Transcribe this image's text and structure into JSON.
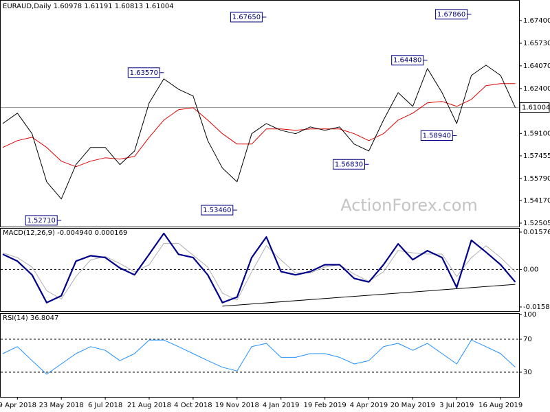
{
  "chart_data": [
    {
      "type": "line",
      "title": "EURAUD,Daily  1.60978 1.61191 1.60813 1.61004",
      "series": [
        {
          "color": "#000000",
          "width": 1,
          "values": [
            1.5983,
            1.6059,
            1.5908,
            1.5554,
            1.5428,
            1.5681,
            1.5807,
            1.5807,
            1.5681,
            1.5781,
            1.6135,
            1.6311,
            1.6235,
            1.6185,
            1.5857,
            1.5655,
            1.5554,
            1.5908,
            1.5983,
            1.5933,
            1.5908,
            1.5958,
            1.5933,
            1.5958,
            1.5832,
            1.5781,
            1.6008,
            1.621,
            1.6109,
            1.6387,
            1.621,
            1.5983,
            1.6336,
            1.6412,
            1.6336,
            1.61
          ]
        },
        {
          "color": "#e00000",
          "width": 1,
          "values": [
            1.5807,
            1.5857,
            1.5882,
            1.5807,
            1.5706,
            1.5665,
            1.5706,
            1.5731,
            1.5721,
            1.5741,
            1.5882,
            1.6008,
            1.6084,
            1.6099,
            1.6008,
            1.5908,
            1.5832,
            1.5832,
            1.5943,
            1.5943,
            1.5933,
            1.5943,
            1.5943,
            1.5943,
            1.5908,
            1.5857,
            1.5908,
            1.6008,
            1.6059,
            1.6135,
            1.6145,
            1.6109,
            1.616,
            1.6261,
            1.6276,
            1.6276
          ]
        }
      ],
      "ylim": [
        1.5225,
        1.6891
      ],
      "yticks": [
        {
          "value": 1.674,
          "label": "1.67400"
        },
        {
          "value": 1.6573,
          "label": "1.65730"
        },
        {
          "value": 1.6407,
          "label": "1.64070"
        },
        {
          "value": 1.624,
          "label": "1.62400"
        },
        {
          "value": 1.591,
          "label": "1.59100"
        },
        {
          "value": 1.57455,
          "label": "1.57455"
        },
        {
          "value": 1.5579,
          "label": "1.55790"
        },
        {
          "value": 1.5417,
          "label": "1.54170"
        },
        {
          "value": 1.52505,
          "label": "1.52505"
        }
      ],
      "grid": false,
      "last_price": {
        "value": 1.61004,
        "label": "1.61004"
      },
      "annotations": [
        {
          "label": "1.52710",
          "value": 1.5271,
          "index": 4
        },
        {
          "label": "1.63570",
          "value": 1.6357,
          "index": 11
        },
        {
          "label": "1.67650",
          "value": 1.6765,
          "index": 18
        },
        {
          "label": "1.53460",
          "value": 1.5346,
          "index": 16
        },
        {
          "label": "1.56830",
          "value": 1.5683,
          "index": 25
        },
        {
          "label": "1.64480",
          "value": 1.6448,
          "index": 29
        },
        {
          "label": "1.58940",
          "value": 1.5894,
          "index": 31
        },
        {
          "label": "1.67860",
          "value": 1.6786,
          "index": 32
        }
      ],
      "watermark": "ActionForex.com"
    },
    {
      "type": "line",
      "title": "MACD(12,26,9) -0.004940 0.000169",
      "series": [
        {
          "color": "#00008b",
          "width": 2.2,
          "values": [
            0.0064,
            0.0035,
            -0.0023,
            -0.014,
            -0.0111,
            0.0035,
            0.0058,
            0.005,
            0.0006,
            -0.0023,
            0.0064,
            0.0152,
            0.0064,
            0.005,
            -0.0023,
            -0.014,
            -0.0117,
            0.005,
            0.0137,
            -0.0009,
            -0.0023,
            -0.0009,
            0.002,
            0.002,
            -0.0038,
            -0.0053,
            0.002,
            0.0108,
            0.0041,
            0.0079,
            0.005,
            -0.0076,
            0.0123,
            0.0073,
            0.002,
            -0.0053
          ]
        },
        {
          "color": "#b0b0b0",
          "width": 1,
          "values": [
            0.007,
            0.005,
            0.001,
            -0.009,
            -0.0125,
            -0.003,
            0.004,
            0.0055,
            0.0025,
            -0.001,
            0.002,
            0.011,
            0.011,
            0.006,
            0.001,
            -0.01,
            -0.013,
            -0.001,
            0.01,
            0.004,
            -0.0015,
            -0.0015,
            0.001,
            0.002,
            -0.002,
            -0.005,
            -0.001,
            0.008,
            0.007,
            0.0065,
            0.0065,
            -0.003,
            0.005,
            0.01,
            0.005,
            -0.001
          ]
        }
      ],
      "ylim": [
        -0.015834,
        0.015762
      ],
      "yticks": [
        0.015762,
        {
          "value": 0,
          "label": "0.00"
        },
        -0.015834
      ],
      "grid": "dashed",
      "trendline": {
        "from_index": 15,
        "to_index": 35,
        "values": [
          -0.0155,
          -0.0063
        ]
      }
    },
    {
      "type": "line",
      "title": "RSI(14) 36.8047",
      "categories": [
        null,
        "9 Apr 2018",
        null,
        null,
        "23 May 2018",
        null,
        null,
        "6 Jul 2018",
        null,
        null,
        "21 Aug 2018",
        null,
        null,
        "4 Oct 2018",
        null,
        null,
        "19 Nov 2018",
        null,
        null,
        "4 Jan 2019",
        null,
        null,
        "19 Feb 2019",
        null,
        null,
        "4 Apr 2019",
        null,
        null,
        "20 May 2019",
        null,
        null,
        "3 Jul 2019",
        null,
        null,
        "16 Aug 2019",
        null
      ],
      "series": [
        {
          "color": "#1e90ff",
          "width": 1,
          "values": [
            52.5,
            61,
            44,
            27.5,
            40,
            52.5,
            61,
            56.5,
            44,
            52.5,
            69,
            69,
            61,
            52.5,
            44,
            36,
            31.5,
            61,
            65,
            48,
            48,
            52.5,
            52.5,
            48,
            40,
            44,
            61,
            65,
            56.5,
            65,
            52.5,
            40,
            69,
            61,
            52.5,
            36
          ]
        }
      ],
      "ylim": [
        0,
        100
      ],
      "yticks": [
        100,
        70,
        30
      ],
      "grid": "dashed"
    }
  ]
}
